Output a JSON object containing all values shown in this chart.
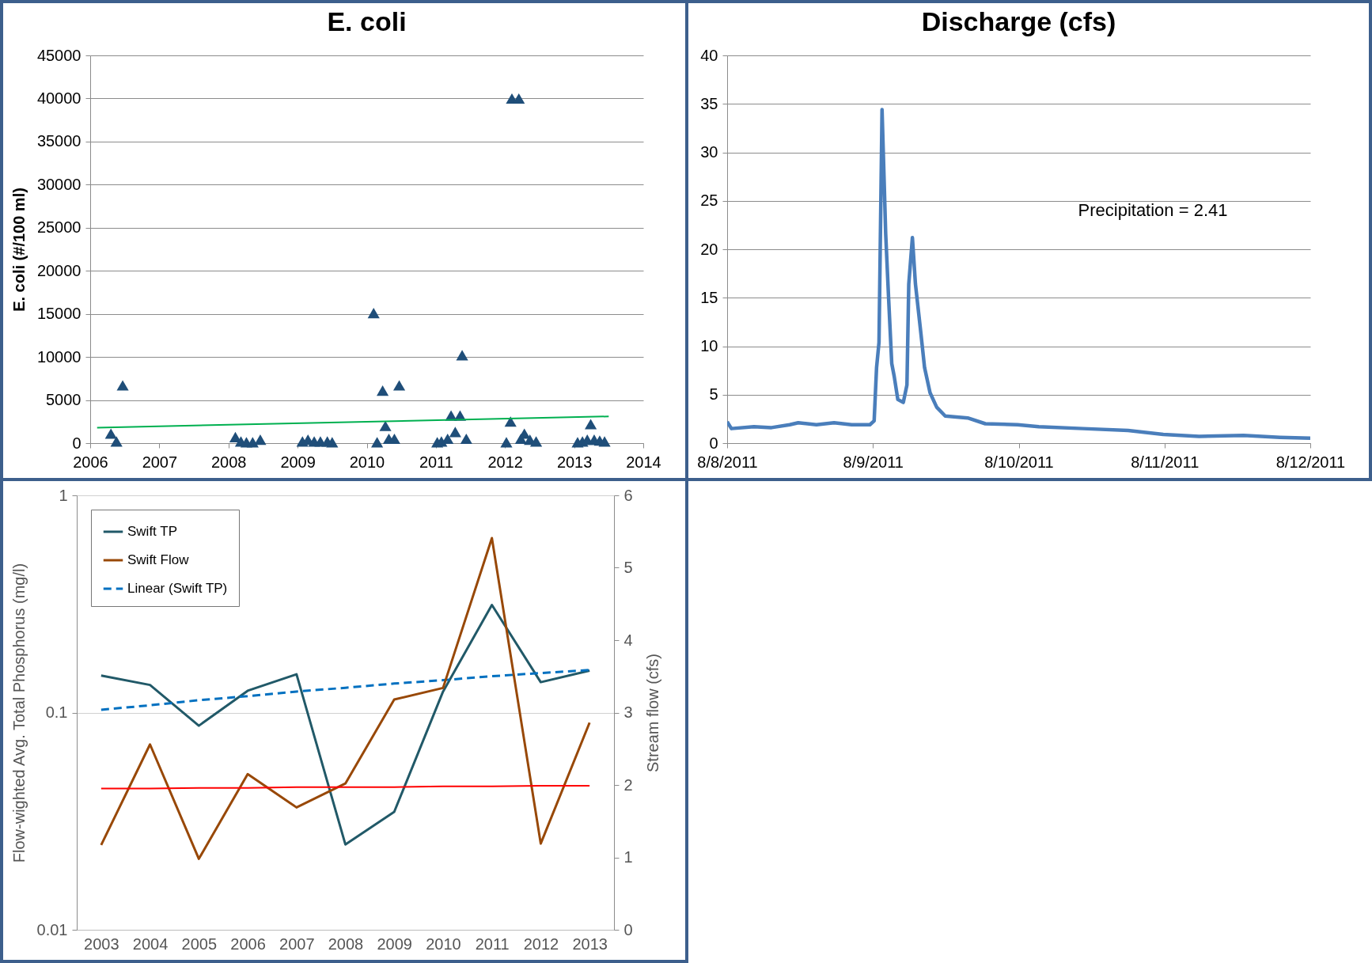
{
  "chart_data": [
    {
      "type": "scatter",
      "title": "E. coli",
      "ylabel": "E. coli (#/100 ml)",
      "xlim": [
        2006,
        2014
      ],
      "xticks": [
        2006,
        2007,
        2008,
        2009,
        2010,
        2011,
        2012,
        2013,
        2014
      ],
      "ylim": [
        0,
        45000
      ],
      "yticks": [
        0,
        5000,
        10000,
        15000,
        20000,
        25000,
        30000,
        35000,
        40000,
        45000
      ],
      "grid": "y",
      "marker": "triangle",
      "series": [
        {
          "color": "#1f4e79",
          "x": [
            2006.3,
            2006.38,
            2006.47,
            2008.1,
            2008.18,
            2008.26,
            2008.35,
            2008.46,
            2009.07,
            2009.15,
            2009.24,
            2009.33,
            2009.43,
            2009.5,
            2010.1,
            2010.15,
            2010.23,
            2010.27,
            2010.32,
            2010.4,
            2010.47,
            2011.02,
            2011.08,
            2011.17,
            2011.22,
            2011.28,
            2011.35,
            2011.38,
            2011.44,
            2012.02,
            2012.08,
            2012.1,
            2012.2,
            2012.23,
            2012.28,
            2012.36,
            2012.45,
            2013.05,
            2013.12,
            2013.19,
            2013.24,
            2013.29,
            2013.37,
            2013.44
          ],
          "values": [
            1100,
            200,
            6700,
            700,
            200,
            100,
            100,
            400,
            200,
            400,
            200,
            200,
            200,
            100,
            15100,
            100,
            6100,
            2000,
            500,
            500,
            6700,
            100,
            200,
            500,
            3200,
            1300,
            3200,
            10200,
            500,
            100,
            2500,
            40000,
            40000,
            500,
            1100,
            400,
            200,
            100,
            200,
            400,
            2200,
            400,
            300,
            200
          ]
        },
        {
          "type": "line",
          "color": "#00b050",
          "marker": "none",
          "x": [
            2006.1,
            2013.5
          ],
          "values": [
            1800,
            3100
          ]
        }
      ]
    },
    {
      "type": "line",
      "title": "Discharge (cfs)",
      "annotations": [
        "Precipitation = 2.41"
      ],
      "xlim": [
        "2011-08-08",
        "2011-08-12"
      ],
      "xticks": [
        {
          "value": "2011-08-08",
          "label": "8/8/2011"
        },
        {
          "value": "2011-08-09",
          "label": "8/9/2011"
        },
        {
          "value": "2011-08-10",
          "label": "8/10/2011"
        },
        {
          "value": "2011-08-11",
          "label": "8/11/2011"
        },
        {
          "value": "2011-08-12",
          "label": "8/12/2011"
        }
      ],
      "ylim": [
        0,
        40
      ],
      "yticks": [
        0,
        5,
        10,
        15,
        20,
        25,
        30,
        35,
        40
      ],
      "grid": "y",
      "series": [
        {
          "color": "#4a7ebb",
          "x": [
            "2011-08-08T00:00",
            "2011-08-08T00:42",
            "2011-08-08T04:24",
            "2011-08-08T07:18",
            "2011-08-08T10:18",
            "2011-08-08T11:42",
            "2011-08-08T14:42",
            "2011-08-08T17:36",
            "2011-08-08T20:30",
            "2011-08-08T23:30",
            "2011-08-09T00:12",
            "2011-08-09T00:36",
            "2011-08-09T01:00",
            "2011-08-09T01:30",
            "2011-08-09T02:06",
            "2011-08-09T02:36",
            "2011-08-09T03:06",
            "2011-08-09T03:30",
            "2011-08-09T04:06",
            "2011-08-09T05:00",
            "2011-08-09T05:36",
            "2011-08-09T05:54",
            "2011-08-09T06:30",
            "2011-08-09T07:00",
            "2011-08-09T07:54",
            "2011-08-09T08:30",
            "2011-08-09T09:24",
            "2011-08-09T10:30",
            "2011-08-09T11:54",
            "2011-08-09T15:36",
            "2011-08-09T18:30",
            "2011-08-09T23:48",
            "2011-08-10T03:18",
            "2011-08-10T10:36",
            "2011-08-10T18:00",
            "2011-08-10T23:48",
            "2011-08-11T05:42",
            "2011-08-11T13:00",
            "2011-08-11T19:00",
            "2011-08-12T00:00"
          ],
          "values": [
            2.2,
            1.5,
            1.7,
            1.6,
            1.9,
            2.1,
            1.9,
            2.1,
            1.9,
            1.9,
            2.3,
            7.8,
            10.4,
            34.4,
            21.6,
            14.7,
            8.2,
            6.9,
            4.5,
            4.2,
            6,
            16.4,
            21.2,
            16.4,
            11.3,
            7.8,
            5.2,
            3.7,
            2.8,
            2.6,
            2.0,
            1.9,
            1.7,
            1.5,
            1.3,
            0.9,
            0.7,
            0.8,
            0.6,
            0.5
          ]
        }
      ]
    },
    {
      "type": "line",
      "ylabel": "Flow-wighted Avg. Total Phosphorus (mg/l)",
      "y2label": "Stream flow (cfs)",
      "categories": [
        "2003",
        "2004",
        "2005",
        "2006",
        "2007",
        "2008",
        "2009",
        "2010",
        "2011",
        "2012",
        "2013"
      ],
      "log": "y",
      "ylim": [
        0.01,
        1
      ],
      "yticks": [
        0.01,
        0.1,
        1
      ],
      "y2lim": [
        0,
        6
      ],
      "y2ticks": [
        0,
        1,
        2,
        3,
        4,
        5,
        6
      ],
      "grid": "y",
      "legend": "top left",
      "series": [
        {
          "name": "Swift TP",
          "color": "#215968",
          "values": [
            0.148,
            0.134,
            0.087,
            0.126,
            0.15,
            0.0247,
            0.0349,
            0.125,
            0.313,
            0.138,
            0.156
          ]
        },
        {
          "name": "Swift Flow",
          "color": "#984807",
          "axis": "y2",
          "values": [
            1.17,
            2.56,
            0.98,
            2.15,
            1.69,
            2.02,
            3.18,
            3.34,
            5.41,
            1.19,
            2.86
          ]
        },
        {
          "name": "Linear (Swift TP)",
          "color": "#0070c0",
          "line_style": "dashed",
          "values": [
            0.103,
            0.108,
            0.114,
            0.119,
            0.125,
            0.13,
            0.136,
            0.141,
            0.147,
            0.152,
            0.157
          ]
        },
        {
          "color": "#ff0000",
          "axis": "y2",
          "values": [
            1.95,
            1.95,
            1.96,
            1.96,
            1.97,
            1.97,
            1.97,
            1.98,
            1.98,
            1.99,
            1.99
          ]
        }
      ]
    }
  ]
}
